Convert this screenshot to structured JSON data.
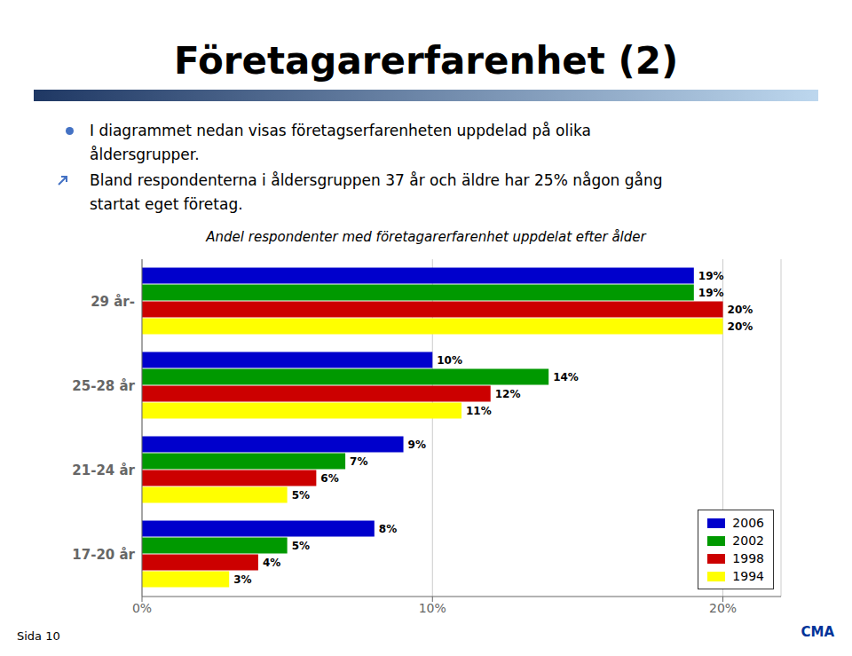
{
  "chart_data": {
    "type": "bar",
    "orientation": "horizontal",
    "title": "Företagarerfarenhet (2)",
    "subtitle": "Andel respondenter med företagarerfarenhet uppdelat efter ålder",
    "annotations": [
      "I diagrammet nedan visas företagserfarenheten uppdelad på olika\nåldersgrupper.",
      "Bland respondenterna i åldersgruppen 37 år och äldre har 25% någon gång\nstartat eget företag.",
      "Sida 10",
      "CMA"
    ],
    "categories": [
      "29 år-",
      "25-28 år",
      "21-24 år",
      "17-20 år"
    ],
    "series": [
      {
        "name": "2006",
        "color": "#0000CC",
        "values": [
          19,
          10,
          9,
          8
        ],
        "value_labels": [
          "19%",
          "10%",
          "9%",
          "8%"
        ]
      },
      {
        "name": "2002",
        "color": "#009900",
        "values": [
          19,
          14,
          7,
          5
        ],
        "value_labels": [
          "19%",
          "14%",
          "7%",
          "5%"
        ]
      },
      {
        "name": "1998",
        "color": "#CC0000",
        "values": [
          20,
          12,
          6,
          4
        ],
        "value_labels": [
          "20%",
          "12%",
          "6%",
          "4%"
        ]
      },
      {
        "name": "1994",
        "color": "#FFFF00",
        "values": [
          20,
          11,
          5,
          3
        ],
        "value_labels": [
          "20%",
          "11%",
          "5%",
          "3%"
        ]
      }
    ],
    "xlim": [
      0,
      22
    ],
    "xticks": [
      {
        "value": 0,
        "label": "0%"
      },
      {
        "value": 10,
        "label": "10%"
      },
      {
        "value": 20,
        "label": "20%"
      }
    ],
    "grid": true,
    "legend": "lower right",
    "data_labels": true
  }
}
